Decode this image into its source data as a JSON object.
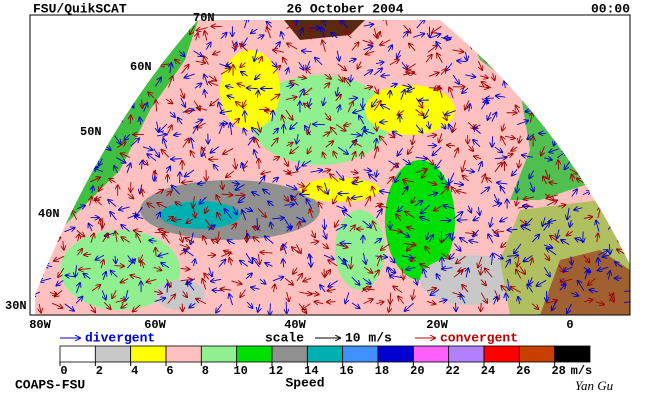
{
  "header": {
    "product": "FSU/QuikSCAT",
    "date": "26 October 2004",
    "time": "00:00"
  },
  "map": {
    "lat_labels": [
      "70N",
      "60N",
      "50N",
      "40N",
      "30N"
    ],
    "lon_labels": [
      "80W",
      "60W",
      "40W",
      "20W",
      "0"
    ]
  },
  "legend": {
    "divergent": "divergent",
    "scale": "scale",
    "scale_value": "10 m/s",
    "convergent": "convergent"
  },
  "colorbar": {
    "title": "Speed",
    "unit": "m/s",
    "ticks": [
      0,
      2,
      4,
      6,
      8,
      10,
      12,
      14,
      16,
      18,
      20,
      22,
      24,
      26,
      28
    ],
    "colors": [
      "#ffffff",
      "#c8c8c8",
      "#ffff00",
      "#ffc0c0",
      "#90f090",
      "#00e000",
      "#909090",
      "#00b0b0",
      "#4090ff",
      "#0000d0",
      "#ff60ff",
      "#b080ff",
      "#ff0000",
      "#c84000",
      "#000000"
    ]
  },
  "footer": {
    "org": "COAPS-FSU",
    "signature": "Yan Gu"
  }
}
